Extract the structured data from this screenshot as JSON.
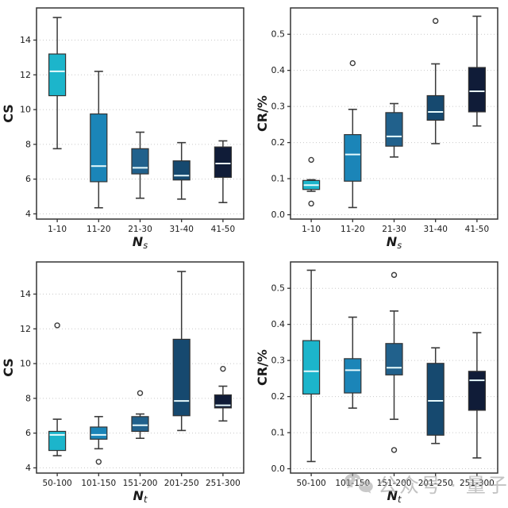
{
  "watermark": {
    "text": "公众号 · 量子位",
    "icon": "wechat-icon"
  },
  "style": {
    "palette": [
      "#1cb5cb",
      "#1b85b8",
      "#21618c",
      "#16496f",
      "#101c38"
    ],
    "box_edge": "#333333",
    "whisker": "#3a3a3a",
    "median": "#e8fbfd",
    "grid": "#c9c9c9",
    "frame": "#333333",
    "tick_label": "#1a1a1a",
    "background": "#ffffff"
  },
  "chart_data": [
    {
      "id": "cs-vs-ns",
      "type": "boxplot",
      "title": "",
      "ylabel": "CS",
      "xlabel_base": "N",
      "xlabel_sub": "s",
      "ylim": [
        3.7,
        15.85
      ],
      "yticks": [
        4,
        6,
        8,
        10,
        12,
        14
      ],
      "yticklabels": [
        "4",
        "6",
        "8",
        "10",
        "12",
        "14"
      ],
      "grid": "horizontal-dotted",
      "categories": [
        "1-10",
        "11-20",
        "21-30",
        "31-40",
        "41-50"
      ],
      "boxes": [
        {
          "whislo": 7.75,
          "q1": 10.8,
          "med": 12.2,
          "q3": 13.2,
          "whishi": 15.3,
          "fliers": []
        },
        {
          "whislo": 4.35,
          "q1": 5.85,
          "med": 6.75,
          "q3": 9.75,
          "whishi": 12.2,
          "fliers": []
        },
        {
          "whislo": 4.9,
          "q1": 6.3,
          "med": 6.65,
          "q3": 7.75,
          "whishi": 8.7,
          "fliers": []
        },
        {
          "whislo": 4.85,
          "q1": 5.95,
          "med": 6.2,
          "q3": 7.05,
          "whishi": 8.1,
          "fliers": []
        },
        {
          "whislo": 4.65,
          "q1": 6.1,
          "med": 6.9,
          "q3": 7.85,
          "whishi": 8.2,
          "fliers": []
        }
      ]
    },
    {
      "id": "cr-vs-ns",
      "type": "boxplot",
      "title": "",
      "ylabel": "CR/%",
      "xlabel_base": "N",
      "xlabel_sub": "s",
      "ylim": [
        -0.012,
        0.573
      ],
      "yticks": [
        0.0,
        0.1,
        0.2,
        0.3,
        0.4,
        0.5
      ],
      "yticklabels": [
        "0.0",
        "0.1",
        "0.2",
        "0.3",
        "0.4",
        "0.5"
      ],
      "grid": "horizontal-dotted",
      "categories": [
        "1-10",
        "11-20",
        "21-30",
        "31-40",
        "41-50"
      ],
      "boxes": [
        {
          "whislo": 0.065,
          "q1": 0.07,
          "med": 0.082,
          "q3": 0.095,
          "whishi": 0.097,
          "fliers": [
            0.152,
            0.031
          ]
        },
        {
          "whislo": 0.02,
          "q1": 0.093,
          "med": 0.167,
          "q3": 0.222,
          "whishi": 0.292,
          "fliers": [
            0.42
          ]
        },
        {
          "whislo": 0.16,
          "q1": 0.19,
          "med": 0.217,
          "q3": 0.283,
          "whishi": 0.308,
          "fliers": []
        },
        {
          "whislo": 0.197,
          "q1": 0.262,
          "med": 0.285,
          "q3": 0.33,
          "whishi": 0.418,
          "fliers": [
            0.537
          ]
        },
        {
          "whislo": 0.246,
          "q1": 0.285,
          "med": 0.342,
          "q3": 0.408,
          "whishi": 0.55,
          "fliers": []
        }
      ]
    },
    {
      "id": "cs-vs-nt",
      "type": "boxplot",
      "title": "",
      "ylabel": "CS",
      "xlabel_base": "N",
      "xlabel_sub": "t",
      "ylim": [
        3.7,
        15.85
      ],
      "yticks": [
        4,
        6,
        8,
        10,
        12,
        14
      ],
      "yticklabels": [
        "4",
        "6",
        "8",
        "10",
        "12",
        "14"
      ],
      "grid": "horizontal-dotted",
      "categories": [
        "50-100",
        "101-150",
        "151-200",
        "201-250",
        "251-300"
      ],
      "boxes": [
        {
          "whislo": 4.7,
          "q1": 5.0,
          "med": 5.9,
          "q3": 6.1,
          "whishi": 6.8,
          "fliers": [
            12.2
          ]
        },
        {
          "whislo": 5.1,
          "q1": 5.65,
          "med": 5.9,
          "q3": 6.35,
          "whishi": 6.95,
          "fliers": [
            4.35
          ]
        },
        {
          "whislo": 5.7,
          "q1": 6.1,
          "med": 6.45,
          "q3": 6.95,
          "whishi": 7.1,
          "fliers": [
            8.3
          ]
        },
        {
          "whislo": 6.15,
          "q1": 7.0,
          "med": 7.85,
          "q3": 11.4,
          "whishi": 15.3,
          "fliers": []
        },
        {
          "whislo": 6.7,
          "q1": 7.45,
          "med": 7.6,
          "q3": 8.2,
          "whishi": 8.7,
          "fliers": [
            9.7
          ]
        }
      ]
    },
    {
      "id": "cr-vs-nt",
      "type": "boxplot",
      "title": "",
      "ylabel": "CR/%",
      "xlabel_base": "N",
      "xlabel_sub": "t",
      "ylim": [
        -0.012,
        0.573
      ],
      "yticks": [
        0.0,
        0.1,
        0.2,
        0.3,
        0.4,
        0.5
      ],
      "yticklabels": [
        "0.0",
        "0.1",
        "0.2",
        "0.3",
        "0.4",
        "0.5"
      ],
      "grid": "horizontal-dotted",
      "categories": [
        "50-100",
        "101-150",
        "151-200",
        "201-250",
        "251-300"
      ],
      "boxes": [
        {
          "whislo": 0.02,
          "q1": 0.207,
          "med": 0.27,
          "q3": 0.355,
          "whishi": 0.55,
          "fliers": []
        },
        {
          "whislo": 0.168,
          "q1": 0.21,
          "med": 0.273,
          "q3": 0.305,
          "whishi": 0.42,
          "fliers": []
        },
        {
          "whislo": 0.137,
          "q1": 0.26,
          "med": 0.28,
          "q3": 0.347,
          "whishi": 0.437,
          "fliers": [
            0.537,
            0.052
          ]
        },
        {
          "whislo": 0.07,
          "q1": 0.093,
          "med": 0.188,
          "q3": 0.292,
          "whishi": 0.335,
          "fliers": []
        },
        {
          "whislo": 0.03,
          "q1": 0.162,
          "med": 0.245,
          "q3": 0.27,
          "whishi": 0.377,
          "fliers": []
        }
      ]
    }
  ]
}
